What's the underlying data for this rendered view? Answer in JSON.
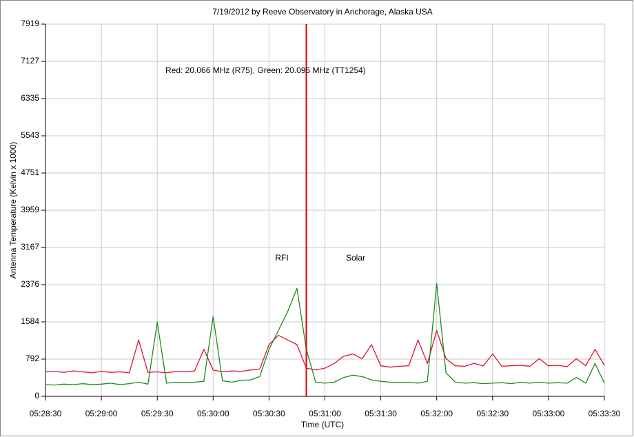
{
  "chart_data": {
    "type": "line",
    "title": "7/19/2012  by  Reeve Observatory  in  Anchorage, Alaska  USA",
    "x_label": "Time (UTC)",
    "y_label": "Antenna Temperature (Kelvin x 1000)",
    "annotations": [
      "Red: 20.066 MHz (R75), Green: 20.095 MHz (TT1254)",
      "RFI",
      "Solar"
    ],
    "x": [
      "05:28:30",
      "05:28:35",
      "05:28:40",
      "05:28:45",
      "05:28:50",
      "05:28:55",
      "05:29:00",
      "05:29:05",
      "05:29:10",
      "05:29:15",
      "05:29:20",
      "05:29:25",
      "05:29:30",
      "05:29:35",
      "05:29:40",
      "05:29:45",
      "05:29:50",
      "05:29:55",
      "05:30:00",
      "05:30:05",
      "05:30:10",
      "05:30:15",
      "05:30:20",
      "05:30:25",
      "05:30:30",
      "05:30:35",
      "05:30:40",
      "05:30:45",
      "05:30:50",
      "05:30:55",
      "05:31:00",
      "05:31:05",
      "05:31:10",
      "05:31:15",
      "05:31:20",
      "05:31:25",
      "05:31:30",
      "05:31:35",
      "05:31:40",
      "05:31:45",
      "05:31:50",
      "05:31:55",
      "05:32:00",
      "05:32:05",
      "05:32:10",
      "05:32:15",
      "05:32:20",
      "05:32:25",
      "05:32:30",
      "05:32:35",
      "05:32:40",
      "05:32:45",
      "05:32:50",
      "05:32:55",
      "05:33:00",
      "05:33:05",
      "05:33:10",
      "05:33:15",
      "05:33:20",
      "05:33:25",
      "05:33:30"
    ],
    "series": [
      {
        "color": "#e01030",
        "values": [
          520,
          530,
          510,
          540,
          520,
          500,
          530,
          510,
          520,
          500,
          1200,
          510,
          520,
          500,
          530,
          520,
          540,
          1000,
          560,
          520,
          540,
          530,
          560,
          580,
          1100,
          1300,
          1200,
          1100,
          600,
          560,
          600,
          700,
          850,
          900,
          800,
          1100,
          650,
          620,
          640,
          650,
          1200,
          700,
          1400,
          800,
          650,
          640,
          700,
          650,
          900,
          640,
          650,
          660,
          640,
          800,
          650,
          660,
          630,
          800,
          650,
          1000,
          660
        ]
      },
      {
        "color": "#1a8a1a",
        "values": [
          250,
          240,
          260,
          250,
          270,
          250,
          260,
          280,
          250,
          270,
          300,
          260,
          1580,
          280,
          300,
          290,
          300,
          320,
          1700,
          330,
          300,
          340,
          350,
          420,
          1000,
          1400,
          1800,
          2300,
          1000,
          300,
          280,
          300,
          400,
          450,
          420,
          350,
          320,
          300,
          290,
          300,
          280,
          320,
          2400,
          500,
          300,
          280,
          290,
          270,
          280,
          290,
          270,
          300,
          280,
          300,
          280,
          290,
          280,
          400,
          280,
          700,
          280
        ]
      }
    ],
    "vline": {
      "x": "05:30:50",
      "color": "#e00000"
    },
    "xlim": [
      "05:28:30",
      "05:33:30"
    ],
    "xticks": [
      "05:28:30",
      "05:29:00",
      "05:29:30",
      "05:30:00",
      "05:30:30",
      "05:31:00",
      "05:31:30",
      "05:32:00",
      "05:32:30",
      "05:33:00",
      "05:33:30"
    ],
    "ylim": [
      0,
      7919
    ],
    "yticks": [
      0,
      792,
      1584,
      2376,
      3167,
      3959,
      4751,
      5543,
      6335,
      7127,
      7919
    ],
    "grid": true
  }
}
